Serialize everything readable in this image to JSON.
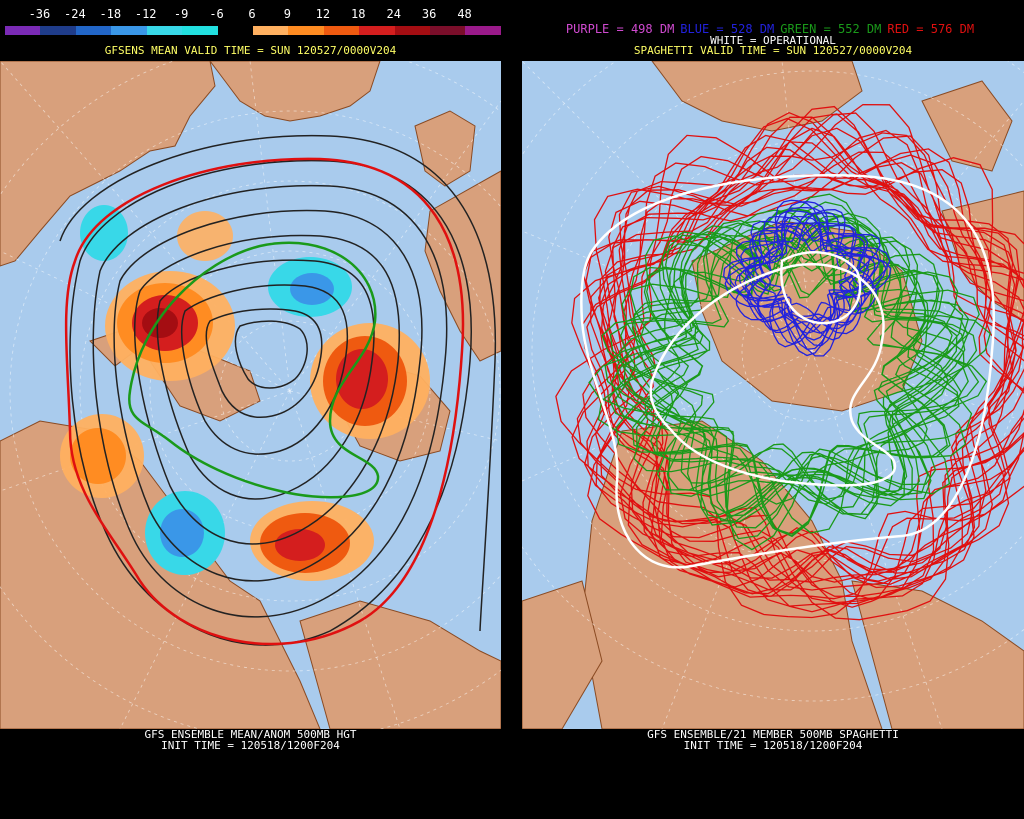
{
  "left_panel": {
    "colorbar": {
      "labels": [
        "-36",
        "-24",
        "-18",
        "-12",
        "-9",
        "-6",
        "6",
        "9",
        "12",
        "18",
        "24",
        "36",
        "48"
      ],
      "colors": [
        "#7a2ab5",
        "#1f3c8a",
        "#2266c8",
        "#3a97e8",
        "#38d8e8",
        "#22e0e0",
        "#000000",
        "#ffb060",
        "#ff8c22",
        "#ef5a10",
        "#d41e1e",
        "#a40d12",
        "#7a0e2a",
        "#9a1a8a"
      ]
    },
    "title": "GFSENS MEAN VALID TIME = SUN 120527/0000V204",
    "footer_line1": "GFS ENSEMBLE MEAN/ANOM 500MB HGT",
    "footer_line2": "INIT TIME = 120518/1200F204"
  },
  "right_panel": {
    "legend": [
      {
        "text": "PURPLE = 498 DM",
        "color": "#d04ad0"
      },
      {
        "text": "BLUE = 528 DM",
        "color": "#2222dd"
      },
      {
        "text": "GREEN = 552 DM",
        "color": "#1a9a1a"
      },
      {
        "text": "RED = 576 DM",
        "color": "#e01010"
      }
    ],
    "operational_label": "WHITE = OPERATIONAL",
    "title": "SPAGHETTI VALID TIME = SUN 120527/0000V204",
    "footer_line1": "GFS ENSEMBLE/21 MEMBER 500MB SPAGHETTI",
    "footer_line2": "INIT TIME = 120518/1200F204"
  },
  "colors": {
    "ocean": "#a9cbed",
    "land": "#d8a07c",
    "border": "#8a4a22"
  }
}
